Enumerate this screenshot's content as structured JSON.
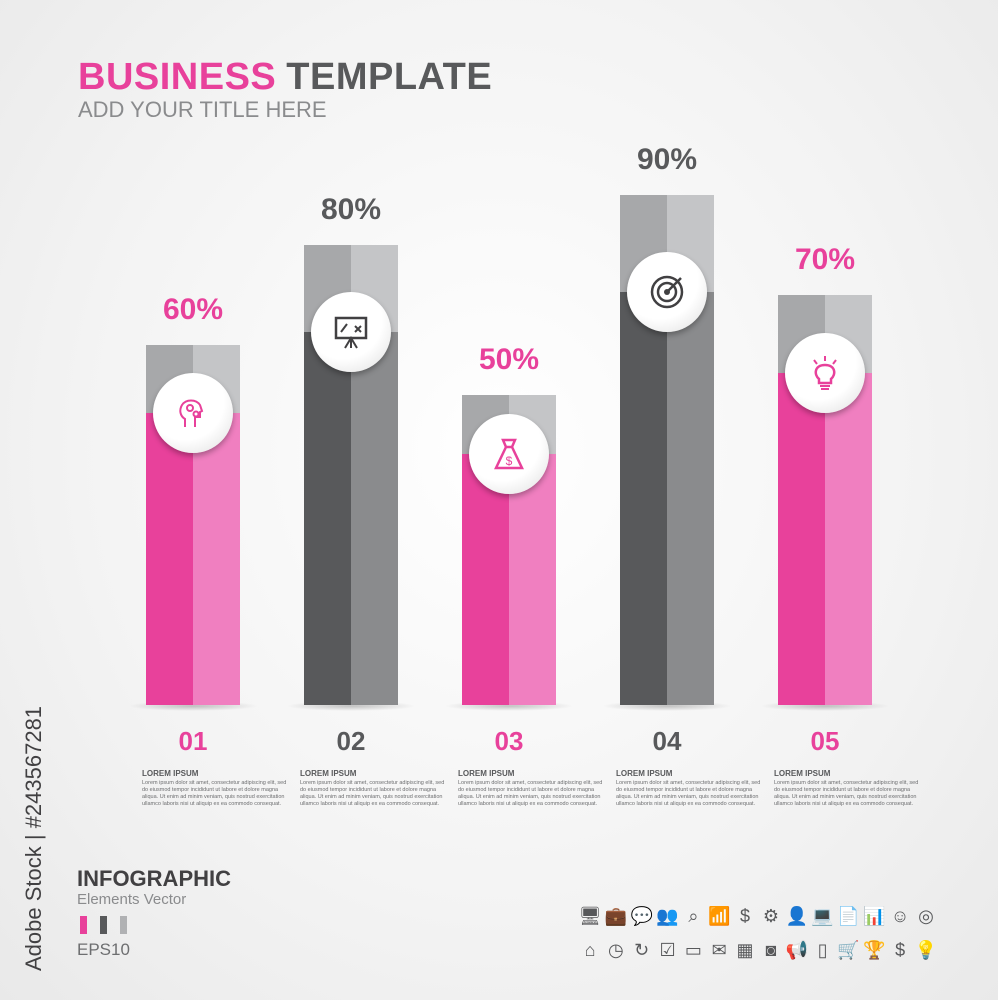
{
  "header": {
    "title_part1": "BUSINESS",
    "title_part2": "TEMPLATE",
    "subtitle": "ADD YOUR  TITLE HERE"
  },
  "colors": {
    "pink": "#e8419b",
    "pink_light": "#f07fc0",
    "dark": "#58595b",
    "dark_light": "#8a8b8d",
    "cap": "#a7a8aa",
    "cap_light": "#c4c5c7"
  },
  "chart_data": {
    "type": "bar",
    "categories": [
      "01",
      "02",
      "03",
      "04",
      "05"
    ],
    "values": [
      60,
      80,
      50,
      90,
      70
    ],
    "labels": [
      "60%",
      "80%",
      "50%",
      "90%",
      "70%"
    ],
    "bar_colors": [
      "pink",
      "dark",
      "pink",
      "dark",
      "pink"
    ],
    "icons": [
      "head-gears-icon",
      "presentation-board-icon",
      "money-bag-icon",
      "target-icon",
      "lightbulb-icon"
    ],
    "ylim": [
      0,
      100
    ],
    "grid": false
  },
  "items": [
    {
      "heading": "LOREM IPSUM",
      "text": "Lorem ipsum dolor sit amet, consectetur adipiscing elit, sed do eiusmod tempor incididunt ut labore et dolore magna aliqua. Ut enim ad minim veniam, quis nostrud exercitation ullamco laboris nisi ut aliquip ex ea commodo consequat."
    },
    {
      "heading": "LOREM IPSUM",
      "text": "Lorem ipsum dolor sit amet, consectetur adipiscing elit, sed do eiusmod tempor incididunt ut labore et dolore magna aliqua. Ut enim ad minim veniam, quis nostrud exercitation ullamco laboris nisi ut aliquip ex ea commodo consequat."
    },
    {
      "heading": "LOREM IPSUM",
      "text": "Lorem ipsum dolor sit amet, consectetur adipiscing elit, sed do eiusmod tempor incididunt ut labore et dolore magna aliqua. Ut enim ad minim veniam, quis nostrud exercitation ullamco laboris nisi ut aliquip ex ea commodo consequat."
    },
    {
      "heading": "LOREM IPSUM",
      "text": "Lorem ipsum dolor sit amet, consectetur adipiscing elit, sed do eiusmod tempor incididunt ut labore et dolore magna aliqua. Ut enim ad minim veniam, quis nostrud exercitation ullamco laboris nisi ut aliquip ex ea commodo consequat."
    },
    {
      "heading": "LOREM IPSUM",
      "text": "Lorem ipsum dolor sit amet, consectetur adipiscing elit, sed do eiusmod tempor incididunt ut labore et dolore magna aliqua. Ut enim ad minim veniam, quis nostrud exercitation ullamco laboris nisi ut aliquip ex ea commodo consequat."
    }
  ],
  "footer": {
    "title": "INFOGRAPHIC",
    "subtitle": "Elements  Vector",
    "format": "EPS10",
    "stock_id": "Adobe Stock | #243567281"
  },
  "icon_rows": [
    [
      "monitor-chart",
      "briefcase",
      "chat-bubbles",
      "team",
      "search",
      "growth-chart",
      "dollar",
      "gears",
      "user",
      "laptop-chart",
      "document",
      "presentation",
      "head-idea",
      "target"
    ],
    [
      "home",
      "clock",
      "refresh",
      "checkbox",
      "credit-cards",
      "envelope",
      "calendar",
      "camera",
      "megaphone",
      "phone",
      "cart",
      "trophy",
      "money-bag",
      "lightbulb"
    ]
  ]
}
